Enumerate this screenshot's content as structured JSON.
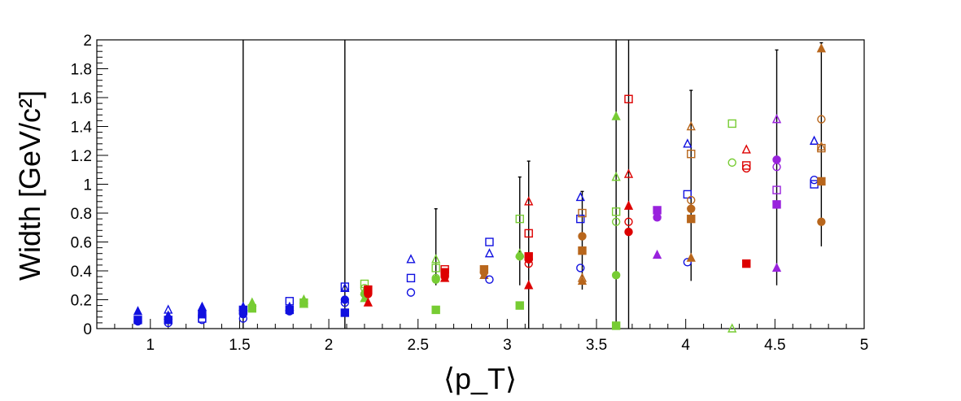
{
  "chart_data": {
    "type": "scatter",
    "title": "",
    "xlabel": "⟨p_T⟩",
    "ylabel": "Width [GeV/c²]",
    "xlim": [
      0.7,
      5.0
    ],
    "ylim": [
      0,
      2.0
    ],
    "xticks": [
      1,
      1.5,
      2,
      2.5,
      3,
      3.5,
      4,
      4.5,
      5
    ],
    "xtick_labels": [
      "1",
      "1.5",
      "2",
      "2.5",
      "3",
      "3.5",
      "4",
      "4.5",
      "5"
    ],
    "yticks": [
      0,
      0.2,
      0.4,
      0.6,
      0.8,
      1.0,
      1.2,
      1.4,
      1.6,
      1.8,
      2.0
    ],
    "ytick_labels": [
      "0",
      "0.2",
      "0.4",
      "0.6",
      "0.8",
      "1",
      "1.2",
      "1.4",
      "1.6",
      "1.8",
      "2"
    ],
    "grid": false,
    "legend": "none",
    "colors": {
      "blue": "#1010e0",
      "green": "#77cc33",
      "red": "#dd0000",
      "orange": "#b8661c",
      "purple": "#9922dd",
      "errorbar": "#000000"
    },
    "points": [
      {
        "x": 0.93,
        "y": 0.12,
        "color": "blue",
        "marker": "triangle-filled"
      },
      {
        "x": 0.93,
        "y": 0.06,
        "color": "blue",
        "marker": "square-filled"
      },
      {
        "x": 0.93,
        "y": 0.05,
        "color": "blue",
        "marker": "circle-filled"
      },
      {
        "x": 1.1,
        "y": 0.13,
        "color": "blue",
        "marker": "triangle-open"
      },
      {
        "x": 1.1,
        "y": 0.09,
        "color": "blue",
        "marker": "triangle-filled"
      },
      {
        "x": 1.1,
        "y": 0.06,
        "color": "blue",
        "marker": "square-filled"
      },
      {
        "x": 1.1,
        "y": 0.04,
        "color": "blue",
        "marker": "circle-open"
      },
      {
        "x": 1.29,
        "y": 0.15,
        "color": "blue",
        "marker": "triangle-filled"
      },
      {
        "x": 1.29,
        "y": 0.1,
        "color": "blue",
        "marker": "square-filled"
      },
      {
        "x": 1.29,
        "y": 0.07,
        "color": "blue",
        "marker": "square-open"
      },
      {
        "x": 1.29,
        "y": 0.06,
        "color": "blue",
        "marker": "circle-open"
      },
      {
        "x": 1.52,
        "y": 0.15,
        "color": "blue",
        "marker": "triangle-filled"
      },
      {
        "x": 1.52,
        "y": 0.13,
        "color": "blue",
        "marker": "square-filled"
      },
      {
        "x": 1.52,
        "y": 0.1,
        "color": "blue",
        "marker": "circle-filled"
      },
      {
        "x": 1.52,
        "y": 0.07,
        "color": "blue",
        "marker": "circle-open",
        "yerr": [
          0.0,
          2.0
        ]
      },
      {
        "x": 1.57,
        "y": 0.18,
        "color": "green",
        "marker": "triangle-filled"
      },
      {
        "x": 1.57,
        "y": 0.14,
        "color": "green",
        "marker": "square-filled"
      },
      {
        "x": 1.78,
        "y": 0.19,
        "color": "blue",
        "marker": "square-open"
      },
      {
        "x": 1.78,
        "y": 0.15,
        "color": "blue",
        "marker": "triangle-filled"
      },
      {
        "x": 1.78,
        "y": 0.13,
        "color": "blue",
        "marker": "square-filled"
      },
      {
        "x": 1.78,
        "y": 0.12,
        "color": "blue",
        "marker": "circle-filled"
      },
      {
        "x": 1.86,
        "y": 0.2,
        "color": "green",
        "marker": "triangle-filled"
      },
      {
        "x": 1.86,
        "y": 0.18,
        "color": "green",
        "marker": "square-filled"
      },
      {
        "x": 1.86,
        "y": 0.17,
        "color": "green",
        "marker": "triangle-open"
      },
      {
        "x": 2.09,
        "y": 0.29,
        "color": "blue",
        "marker": "square-open",
        "yerr": [
          0.0,
          2.0
        ]
      },
      {
        "x": 2.09,
        "y": 0.28,
        "color": "blue",
        "marker": "triangle-open"
      },
      {
        "x": 2.09,
        "y": 0.2,
        "color": "blue",
        "marker": "circle-filled"
      },
      {
        "x": 2.09,
        "y": 0.18,
        "color": "blue",
        "marker": "circle-open"
      },
      {
        "x": 2.09,
        "y": 0.11,
        "color": "blue",
        "marker": "square-filled"
      },
      {
        "x": 2.2,
        "y": 0.31,
        "color": "green",
        "marker": "square-open"
      },
      {
        "x": 2.2,
        "y": 0.28,
        "color": "green",
        "marker": "circle-open"
      },
      {
        "x": 2.2,
        "y": 0.26,
        "color": "green",
        "marker": "triangle-open"
      },
      {
        "x": 2.2,
        "y": 0.24,
        "color": "green",
        "marker": "circle-filled"
      },
      {
        "x": 2.2,
        "y": 0.21,
        "color": "green",
        "marker": "triangle-filled"
      },
      {
        "x": 2.22,
        "y": 0.27,
        "color": "red",
        "marker": "square-filled"
      },
      {
        "x": 2.22,
        "y": 0.24,
        "color": "red",
        "marker": "circle-filled"
      },
      {
        "x": 2.22,
        "y": 0.18,
        "color": "red",
        "marker": "triangle-filled"
      },
      {
        "x": 2.46,
        "y": 0.48,
        "color": "blue",
        "marker": "triangle-open"
      },
      {
        "x": 2.46,
        "y": 0.35,
        "color": "blue",
        "marker": "square-open"
      },
      {
        "x": 2.46,
        "y": 0.25,
        "color": "blue",
        "marker": "circle-open"
      },
      {
        "x": 2.6,
        "y": 0.48,
        "color": "green",
        "marker": "triangle-open",
        "yerr": [
          0.3,
          0.83
        ]
      },
      {
        "x": 2.6,
        "y": 0.42,
        "color": "green",
        "marker": "square-open"
      },
      {
        "x": 2.6,
        "y": 0.35,
        "color": "green",
        "marker": "circle-open"
      },
      {
        "x": 2.6,
        "y": 0.34,
        "color": "green",
        "marker": "circle-filled"
      },
      {
        "x": 2.6,
        "y": 0.13,
        "color": "green",
        "marker": "square-filled"
      },
      {
        "x": 2.65,
        "y": 0.41,
        "color": "red",
        "marker": "square-open"
      },
      {
        "x": 2.65,
        "y": 0.39,
        "color": "red",
        "marker": "square-filled"
      },
      {
        "x": 2.65,
        "y": 0.36,
        "color": "red",
        "marker": "circle-filled"
      },
      {
        "x": 2.65,
        "y": 0.35,
        "color": "red",
        "marker": "triangle-filled"
      },
      {
        "x": 2.87,
        "y": 0.41,
        "color": "orange",
        "marker": "square-filled"
      },
      {
        "x": 2.87,
        "y": 0.39,
        "color": "orange",
        "marker": "circle-filled"
      },
      {
        "x": 2.87,
        "y": 0.37,
        "color": "orange",
        "marker": "triangle-filled"
      },
      {
        "x": 2.9,
        "y": 0.6,
        "color": "blue",
        "marker": "square-open"
      },
      {
        "x": 2.9,
        "y": 0.52,
        "color": "blue",
        "marker": "triangle-open"
      },
      {
        "x": 2.9,
        "y": 0.34,
        "color": "blue",
        "marker": "circle-open"
      },
      {
        "x": 3.07,
        "y": 0.76,
        "color": "green",
        "marker": "square-open",
        "yerr": [
          0.3,
          1.05
        ]
      },
      {
        "x": 3.07,
        "y": 0.52,
        "color": "green",
        "marker": "triangle-open"
      },
      {
        "x": 3.07,
        "y": 0.5,
        "color": "green",
        "marker": "circle-filled"
      },
      {
        "x": 3.07,
        "y": 0.16,
        "color": "green",
        "marker": "square-filled"
      },
      {
        "x": 3.12,
        "y": 0.88,
        "color": "red",
        "marker": "triangle-open",
        "yerr": [
          0.0,
          1.16
        ]
      },
      {
        "x": 3.12,
        "y": 0.66,
        "color": "red",
        "marker": "square-open"
      },
      {
        "x": 3.12,
        "y": 0.5,
        "color": "red",
        "marker": "square-filled"
      },
      {
        "x": 3.12,
        "y": 0.48,
        "color": "red",
        "marker": "circle-filled"
      },
      {
        "x": 3.12,
        "y": 0.45,
        "color": "red",
        "marker": "circle-open"
      },
      {
        "x": 3.12,
        "y": 0.3,
        "color": "red",
        "marker": "triangle-filled"
      },
      {
        "x": 3.41,
        "y": 0.91,
        "color": "blue",
        "marker": "triangle-open"
      },
      {
        "x": 3.41,
        "y": 0.76,
        "color": "blue",
        "marker": "square-open"
      },
      {
        "x": 3.41,
        "y": 0.42,
        "color": "blue",
        "marker": "circle-open"
      },
      {
        "x": 3.42,
        "y": 0.8,
        "color": "orange",
        "marker": "square-open"
      },
      {
        "x": 3.42,
        "y": 0.64,
        "color": "orange",
        "marker": "circle-filled",
        "yerr": [
          0.27,
          0.95
        ]
      },
      {
        "x": 3.42,
        "y": 0.54,
        "color": "orange",
        "marker": "square-filled"
      },
      {
        "x": 3.42,
        "y": 0.35,
        "color": "orange",
        "marker": "triangle-open"
      },
      {
        "x": 3.42,
        "y": 0.33,
        "color": "orange",
        "marker": "triangle-filled"
      },
      {
        "x": 3.61,
        "y": 1.47,
        "color": "green",
        "marker": "triangle-filled",
        "yerr": [
          0.0,
          2.0
        ]
      },
      {
        "x": 3.61,
        "y": 1.05,
        "color": "green",
        "marker": "triangle-open"
      },
      {
        "x": 3.61,
        "y": 0.81,
        "color": "green",
        "marker": "square-open"
      },
      {
        "x": 3.61,
        "y": 0.74,
        "color": "green",
        "marker": "circle-open"
      },
      {
        "x": 3.61,
        "y": 0.37,
        "color": "green",
        "marker": "circle-filled"
      },
      {
        "x": 3.61,
        "y": 0.02,
        "color": "green",
        "marker": "square-filled"
      },
      {
        "x": 3.68,
        "y": 1.59,
        "color": "red",
        "marker": "square-open",
        "yerr": [
          0.0,
          2.0
        ]
      },
      {
        "x": 3.68,
        "y": 1.07,
        "color": "red",
        "marker": "triangle-open"
      },
      {
        "x": 3.68,
        "y": 0.85,
        "color": "red",
        "marker": "triangle-filled"
      },
      {
        "x": 3.68,
        "y": 0.74,
        "color": "red",
        "marker": "circle-open"
      },
      {
        "x": 3.68,
        "y": 0.67,
        "color": "red",
        "marker": "circle-filled"
      },
      {
        "x": 3.84,
        "y": 0.82,
        "color": "purple",
        "marker": "square-filled"
      },
      {
        "x": 3.84,
        "y": 0.77,
        "color": "purple",
        "marker": "circle-filled"
      },
      {
        "x": 3.84,
        "y": 0.51,
        "color": "purple",
        "marker": "triangle-filled"
      },
      {
        "x": 4.01,
        "y": 1.28,
        "color": "blue",
        "marker": "triangle-open"
      },
      {
        "x": 4.01,
        "y": 0.93,
        "color": "blue",
        "marker": "square-open"
      },
      {
        "x": 4.01,
        "y": 0.46,
        "color": "blue",
        "marker": "circle-open"
      },
      {
        "x": 4.03,
        "y": 1.4,
        "color": "orange",
        "marker": "triangle-open",
        "yerr": [
          0.33,
          1.65
        ]
      },
      {
        "x": 4.03,
        "y": 1.21,
        "color": "orange",
        "marker": "square-open"
      },
      {
        "x": 4.03,
        "y": 0.89,
        "color": "orange",
        "marker": "circle-open"
      },
      {
        "x": 4.03,
        "y": 0.83,
        "color": "orange",
        "marker": "circle-filled"
      },
      {
        "x": 4.03,
        "y": 0.76,
        "color": "orange",
        "marker": "square-filled"
      },
      {
        "x": 4.03,
        "y": 0.49,
        "color": "orange",
        "marker": "triangle-filled"
      },
      {
        "x": 4.26,
        "y": 1.42,
        "color": "green",
        "marker": "square-open"
      },
      {
        "x": 4.26,
        "y": 1.15,
        "color": "green",
        "marker": "circle-open"
      },
      {
        "x": 4.26,
        "y": 0.0,
        "color": "green",
        "marker": "triangle-open"
      },
      {
        "x": 4.34,
        "y": 1.24,
        "color": "red",
        "marker": "triangle-open"
      },
      {
        "x": 4.34,
        "y": 1.13,
        "color": "red",
        "marker": "square-open"
      },
      {
        "x": 4.34,
        "y": 1.11,
        "color": "red",
        "marker": "circle-open"
      },
      {
        "x": 4.34,
        "y": 0.45,
        "color": "red",
        "marker": "square-filled"
      },
      {
        "x": 4.51,
        "y": 1.45,
        "color": "purple",
        "marker": "triangle-open",
        "yerr": [
          0.3,
          1.93
        ]
      },
      {
        "x": 4.51,
        "y": 1.17,
        "color": "purple",
        "marker": "circle-filled"
      },
      {
        "x": 4.51,
        "y": 1.12,
        "color": "purple",
        "marker": "circle-open"
      },
      {
        "x": 4.51,
        "y": 0.96,
        "color": "purple",
        "marker": "square-open"
      },
      {
        "x": 4.51,
        "y": 0.86,
        "color": "purple",
        "marker": "square-filled"
      },
      {
        "x": 4.51,
        "y": 0.42,
        "color": "purple",
        "marker": "triangle-filled"
      },
      {
        "x": 4.72,
        "y": 1.3,
        "color": "blue",
        "marker": "triangle-open"
      },
      {
        "x": 4.72,
        "y": 1.03,
        "color": "blue",
        "marker": "circle-open"
      },
      {
        "x": 4.72,
        "y": 1.0,
        "color": "blue",
        "marker": "square-open"
      },
      {
        "x": 4.76,
        "y": 1.94,
        "color": "orange",
        "marker": "triangle-filled",
        "yerr": [
          0.57,
          1.98
        ]
      },
      {
        "x": 4.76,
        "y": 1.45,
        "color": "orange",
        "marker": "circle-open"
      },
      {
        "x": 4.76,
        "y": 1.26,
        "color": "orange",
        "marker": "triangle-open"
      },
      {
        "x": 4.76,
        "y": 1.25,
        "color": "orange",
        "marker": "square-open"
      },
      {
        "x": 4.76,
        "y": 1.02,
        "color": "orange",
        "marker": "square-filled"
      },
      {
        "x": 4.76,
        "y": 0.74,
        "color": "orange",
        "marker": "circle-filled"
      }
    ]
  }
}
